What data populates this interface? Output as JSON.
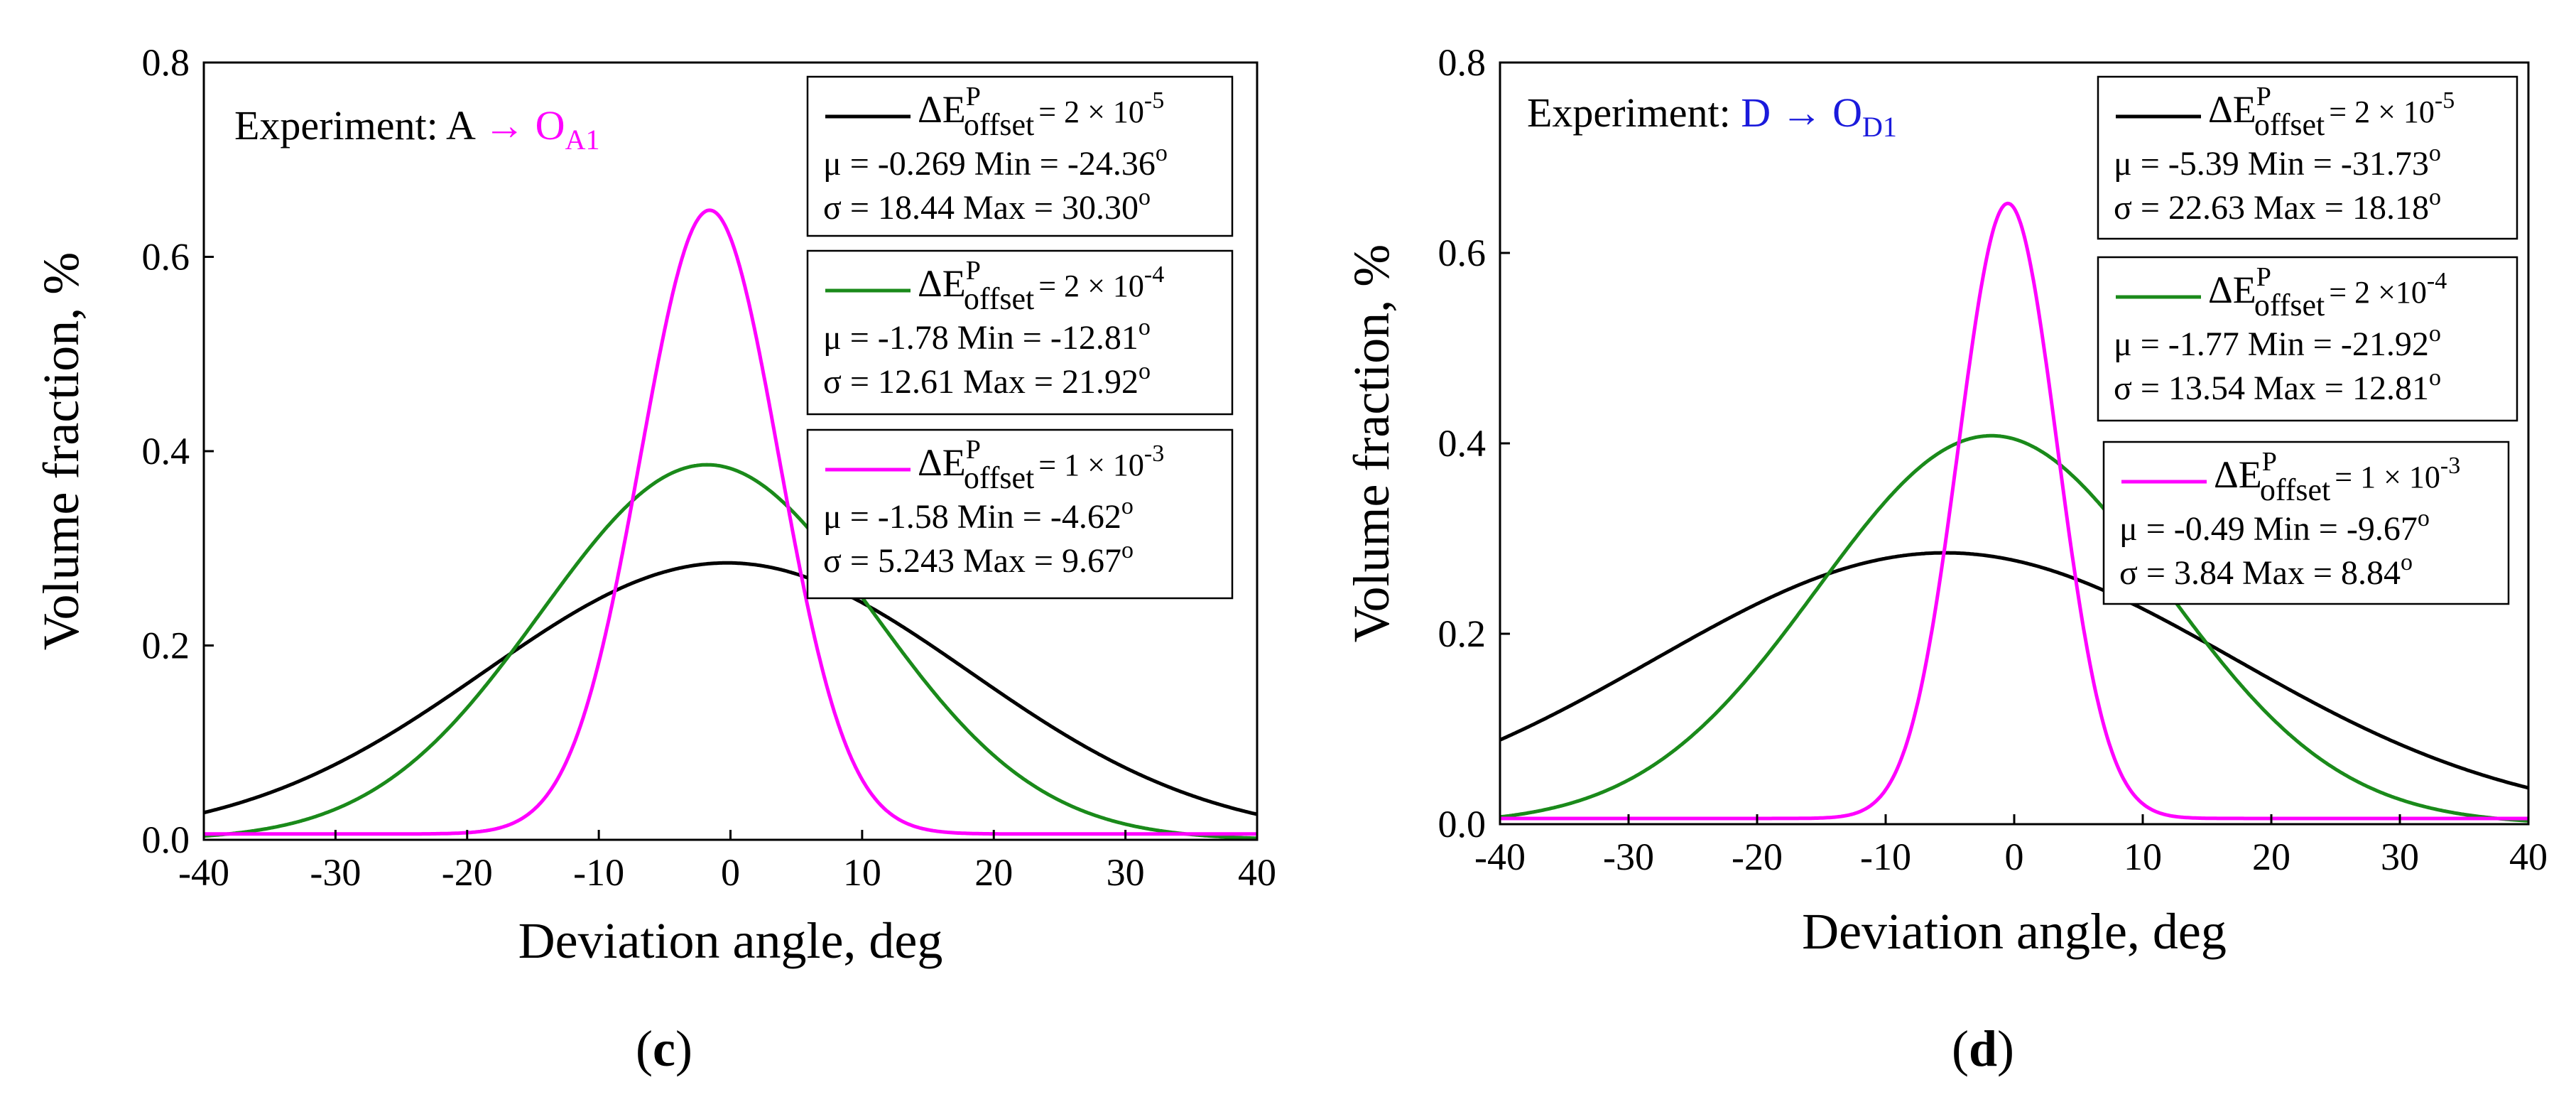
{
  "colors": {
    "black": "#000000",
    "green": "#1a8a1a",
    "magenta": "#ff00ff",
    "blue": "#1a1adc"
  },
  "chart_data": [
    {
      "type": "line",
      "panel_label": "c",
      "experiment": {
        "prefix": "Experiment: A",
        "arrow": "→",
        "target_main": "O",
        "target_sub": "A1",
        "target_color": "magenta"
      },
      "xlabel": "Deviation angle, deg",
      "ylabel": "Volume fraction, %",
      "xlim": [
        -40,
        40
      ],
      "ylim": [
        0,
        0.8
      ],
      "xticks": [
        "-40",
        "-30",
        "-20",
        "-10",
        "0",
        "10",
        "20",
        "30",
        "40"
      ],
      "yticks": [
        "0.0",
        "0.2",
        "0.4",
        "0.6",
        "0.8"
      ],
      "series": [
        {
          "name": "ΔE offset P = 2 × 10-5",
          "color": "black",
          "mean": -0.269,
          "sigma": 18.44,
          "min": -24.36,
          "max": 30.3,
          "peak": 0.285,
          "baseline": 0.0,
          "legend": {
            "lhs_main": "ΔE",
            "lhs_sup": "P",
            "lhs_sub": "offset",
            "rhs": "= 2 × 10",
            "exp": "-5",
            "row1": "μ = -0.269 Min = -24.36",
            "row1_sup": "o",
            "row2": "σ = 18.44  Max = 30.30",
            "row2_sup": "o"
          }
        },
        {
          "name": "ΔE offset P = 2 × 10-4",
          "color": "green",
          "mean": -1.78,
          "sigma": 12.61,
          "min": -12.81,
          "max": 21.92,
          "peak": 0.386,
          "baseline": 0.0,
          "legend": {
            "lhs_main": "ΔE",
            "lhs_sup": "P",
            "lhs_sub": "offset",
            "rhs": "= 2 × 10",
            "exp": "-4",
            "row1": "μ = -1.78   Min = -12.81",
            "row1_sup": "o",
            "row2": "σ = 12.61  Max = 21.92",
            "row2_sup": "o"
          }
        },
        {
          "name": "ΔE offset P = 1 × 10-3",
          "color": "magenta",
          "mean": -1.58,
          "sigma": 5.243,
          "min": -4.62,
          "max": 9.67,
          "peak": 0.648,
          "baseline": 0.006,
          "legend": {
            "lhs_main": "ΔE",
            "lhs_sup": "P",
            "lhs_sub": "offset",
            "rhs": "= 1 × 10",
            "exp": "-3",
            "row1": "μ = -1.58   Min = -4.62",
            "row1_sup": "o",
            "row2": "σ = 5.243  Max = 9.67",
            "row2_sup": "o"
          }
        }
      ]
    },
    {
      "type": "line",
      "panel_label": "d",
      "experiment": {
        "prefix": "Experiment:",
        "arrow": "D → ",
        "target_main": "O",
        "target_sub": "D1",
        "target_color": "blue"
      },
      "xlabel": "Deviation angle, deg",
      "ylabel": "Volume fraction, %",
      "xlim": [
        -40,
        40
      ],
      "ylim": [
        0,
        0.8
      ],
      "xticks": [
        "-40",
        "-30",
        "-20",
        "-10",
        "0",
        "10",
        "20",
        "30",
        "40"
      ],
      "yticks": [
        "0.0",
        "0.2",
        "0.4",
        "0.6",
        "0.8"
      ],
      "series": [
        {
          "name": "ΔE offset P = 2 × 10-5",
          "color": "black",
          "mean": -5.39,
          "sigma": 22.63,
          "min": -31.73,
          "max": 18.18,
          "peak": 0.285,
          "baseline": 0.0,
          "legend": {
            "lhs_main": "ΔE",
            "lhs_sup": "P",
            "lhs_sub": "offset",
            "rhs": "= 2 × 10",
            "exp": "-5",
            "row1": "μ = -5.39 Min = -31.73",
            "row1_sup": "o",
            "row2": "σ = 22.63 Max = 18.18",
            "row2_sup": "o"
          }
        },
        {
          "name": "ΔE offset P = 2 ×10-4",
          "color": "green",
          "mean": -1.77,
          "sigma": 13.54,
          "min": -21.92,
          "max": 12.81,
          "peak": 0.408,
          "baseline": 0.0,
          "legend": {
            "lhs_main": "ΔE",
            "lhs_sup": "P",
            "lhs_sub": "offset",
            "rhs": "= 2 ×10",
            "exp": "-4",
            "row1": "μ = -1.77   Min = -21.92",
            "row1_sup": "o",
            "row2": "σ = 13.54  Max = 12.81",
            "row2_sup": "o"
          }
        },
        {
          "name": "ΔE offset P = 1 × 10-3",
          "color": "magenta",
          "mean": -0.49,
          "sigma": 3.84,
          "min": -9.67,
          "max": 8.84,
          "peak": 0.652,
          "baseline": 0.006,
          "legend": {
            "lhs_main": "ΔE",
            "lhs_sup": "P",
            "lhs_sub": "offset",
            "rhs": "= 1 × 10",
            "exp": "-3",
            "row1": "μ = -0.49 Min = -9.67",
            "row1_sup": "o",
            "row2": "σ = 3.84  Max = 8.84",
            "row2_sup": "o"
          }
        }
      ]
    }
  ]
}
